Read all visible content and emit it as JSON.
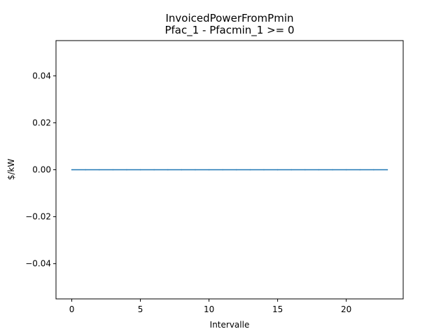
{
  "chart_data": {
    "type": "line",
    "title": "InvoicedPowerFromPmin",
    "subtitle": "Pfac_1 - Pfacmin_1 >= 0",
    "xlabel": "Intervalle",
    "ylabel": "$/kW",
    "xlim": [
      -1.15,
      24.15
    ],
    "ylim": [
      -0.055,
      0.055
    ],
    "x_ticks": [
      0,
      5,
      10,
      15,
      20
    ],
    "x_tick_labels": [
      "0",
      "5",
      "10",
      "15",
      "20"
    ],
    "y_ticks": [
      -0.04,
      -0.02,
      0.0,
      0.02,
      0.04
    ],
    "y_tick_labels": [
      "−0.04",
      "−0.02",
      "0.00",
      "0.02",
      "0.04"
    ],
    "grid": false,
    "series": [
      {
        "color": "#1f77b4",
        "x": [
          0,
          1,
          2,
          3,
          4,
          5,
          6,
          7,
          8,
          9,
          10,
          11,
          12,
          13,
          14,
          15,
          16,
          17,
          18,
          19,
          20,
          21,
          22,
          23
        ],
        "values": [
          0,
          0,
          0,
          0,
          0,
          0,
          0,
          0,
          0,
          0,
          0,
          0,
          0,
          0,
          0,
          0,
          0,
          0,
          0,
          0,
          0,
          0,
          0,
          0
        ]
      }
    ]
  }
}
